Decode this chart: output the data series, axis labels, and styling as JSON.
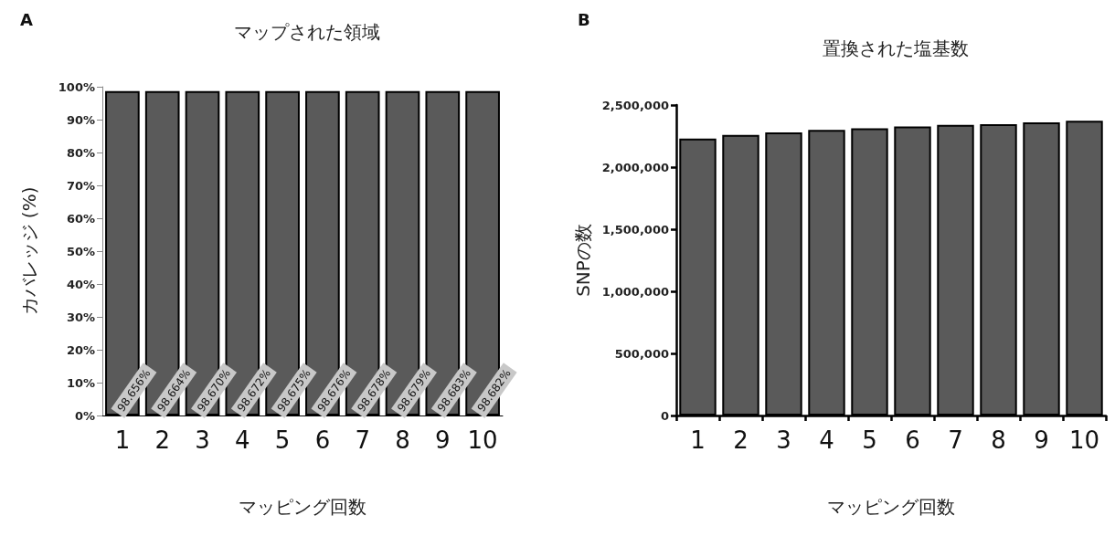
{
  "chart_data": [
    {
      "type": "bar",
      "title": "マップされた領域",
      "xlabel": "マッピング回数",
      "ylabel": "カバレッジ (%)",
      "annotations": [
        "A"
      ],
      "categories": [
        "1",
        "2",
        "3",
        "4",
        "5",
        "6",
        "7",
        "8",
        "9",
        "10"
      ],
      "values": [
        98.656,
        98.664,
        98.67,
        98.672,
        98.675,
        98.676,
        98.678,
        98.679,
        98.683,
        98.682
      ],
      "value_labels": [
        "98.656%",
        "98.664%",
        "98.670%",
        "98.672%",
        "98.675%",
        "98.676%",
        "98.678%",
        "98.679%",
        "98.683%",
        "98.682%"
      ],
      "color": "#5a5a5a",
      "ylim": [
        0,
        100
      ],
      "yticks": [
        {
          "value": 0,
          "label": "0%"
        },
        {
          "value": 10,
          "label": "10%"
        },
        {
          "value": 20,
          "label": "20%"
        },
        {
          "value": 30,
          "label": "30%"
        },
        {
          "value": 40,
          "label": "40%"
        },
        {
          "value": 50,
          "label": "50%"
        },
        {
          "value": 60,
          "label": "60%"
        },
        {
          "value": 70,
          "label": "70%"
        },
        {
          "value": 80,
          "label": "80%"
        },
        {
          "value": 90,
          "label": "90%"
        },
        {
          "value": 100,
          "label": "100%"
        }
      ],
      "grid": false
    },
    {
      "type": "bar",
      "title": "置換された塩基数",
      "xlabel": "マッピング回数",
      "ylabel": "SNPの数",
      "annotations": [
        "B"
      ],
      "categories": [
        "1",
        "2",
        "3",
        "4",
        "5",
        "6",
        "7",
        "8",
        "9",
        "10"
      ],
      "values": [
        2230000,
        2260000,
        2280000,
        2299000,
        2313000,
        2327000,
        2340000,
        2345000,
        2360000,
        2373000
      ],
      "color": "#5a5a5a",
      "ylim": [
        0,
        2500000
      ],
      "yticks": [
        {
          "value": 0,
          "label": "0"
        },
        {
          "value": 500000,
          "label": "500,000"
        },
        {
          "value": 1000000,
          "label": "1,000,000"
        },
        {
          "value": 1500000,
          "label": "1,500,000"
        },
        {
          "value": 2000000,
          "label": "2,000,000"
        },
        {
          "value": 2500000,
          "label": "2,500,000"
        }
      ],
      "grid": false
    }
  ]
}
